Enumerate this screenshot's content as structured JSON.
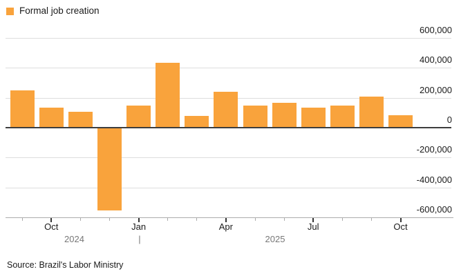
{
  "legend": {
    "label": "Formal job creation"
  },
  "source": {
    "text": "Source: Brazil's Labor Ministry"
  },
  "colors": {
    "bar": "#F9A33C",
    "gridline": "#DDDDDD",
    "zero_line": "#3D3D3D",
    "axis_line": "#ABABAB",
    "tick_minor": "#ABABAB",
    "tick_major": "#333333",
    "axis_text": "#1A1A1A",
    "year_text": "#777777"
  },
  "chart_data": {
    "type": "bar",
    "title": "Formal job creation",
    "xlabel": "",
    "ylabel": "",
    "ylim": [
      -600000,
      600000
    ],
    "grid": true,
    "legend_position": "top-left",
    "y_axis_side": "right",
    "x": [
      "Sep 2024",
      "Oct 2024",
      "Nov 2024",
      "Dec 2024",
      "Jan 2025",
      "Feb 2025",
      "Mar 2025",
      "Apr 2025",
      "May 2025",
      "Jun 2025",
      "Jul 2025",
      "Aug 2025",
      "Sep 2025",
      "Oct 2025"
    ],
    "values": [
      250000,
      135000,
      105000,
      -550000,
      150000,
      435000,
      80000,
      240000,
      150000,
      165000,
      135000,
      150000,
      210000,
      85000
    ],
    "y_ticks": [
      {
        "value": 600000,
        "label": "600,000"
      },
      {
        "value": 400000,
        "label": "400,000"
      },
      {
        "value": 200000,
        "label": "200,000"
      },
      {
        "value": 0,
        "label": "0"
      },
      {
        "value": -200000,
        "label": "-200,000"
      },
      {
        "value": -400000,
        "label": "-400,000"
      },
      {
        "value": -600000,
        "label": "-600,000"
      }
    ],
    "x_tick_labels": [
      {
        "index": 1,
        "label": "Oct"
      },
      {
        "index": 4,
        "label": "Jan"
      },
      {
        "index": 7,
        "label": "Apr"
      },
      {
        "index": 10,
        "label": "Jul"
      },
      {
        "index": 13,
        "label": "Oct"
      }
    ],
    "year_labels": [
      {
        "label": "2024"
      },
      {
        "label": "2025"
      }
    ],
    "year_divider": "|"
  }
}
